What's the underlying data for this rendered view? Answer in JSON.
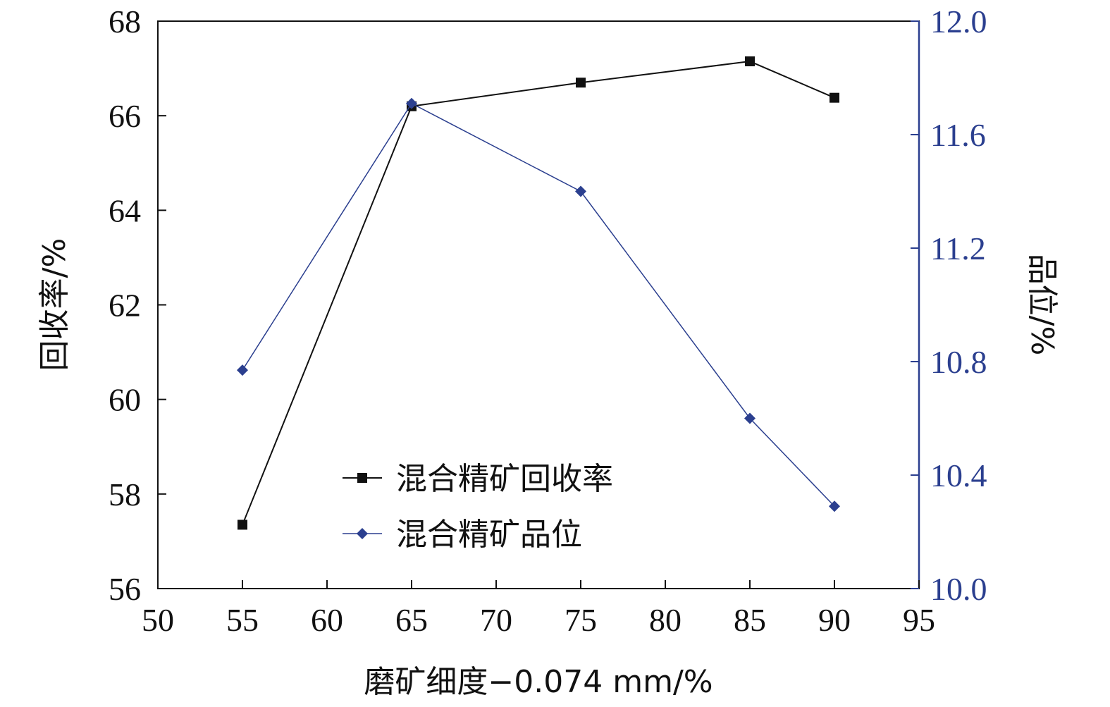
{
  "chart_data": {
    "type": "line",
    "xlabel": "磨矿细度−0.074 mm/%",
    "ylabel_left": "回收率/%",
    "ylabel_right": "品位/%",
    "xlim": [
      50,
      95
    ],
    "xticks": [
      50,
      55,
      60,
      65,
      70,
      75,
      80,
      85,
      90,
      95
    ],
    "ylim_left": [
      56,
      68
    ],
    "yticks_left": [
      56,
      58,
      60,
      62,
      64,
      66,
      68
    ],
    "ylim_right": [
      10.0,
      12.0
    ],
    "yticks_right": [
      "10.0",
      "10.4",
      "10.8",
      "11.2",
      "11.6",
      "12.0"
    ],
    "grid": false,
    "legend_position": "bottom-center",
    "series": [
      {
        "name": "混合精矿回收率",
        "axis": "left",
        "marker": "square",
        "color": "#111111",
        "x": [
          55,
          65,
          75,
          85,
          90
        ],
        "values": [
          57.35,
          66.2,
          66.7,
          67.15,
          66.38
        ]
      },
      {
        "name": "混合精矿品位",
        "axis": "right",
        "marker": "diamond",
        "color": "#2b3f8f",
        "x": [
          55,
          65,
          75,
          85,
          90
        ],
        "values": [
          10.77,
          11.71,
          11.4,
          10.6,
          10.29
        ]
      }
    ],
    "colors": {
      "left_axis": "#111111",
      "right_axis": "#2b3f8f"
    }
  }
}
